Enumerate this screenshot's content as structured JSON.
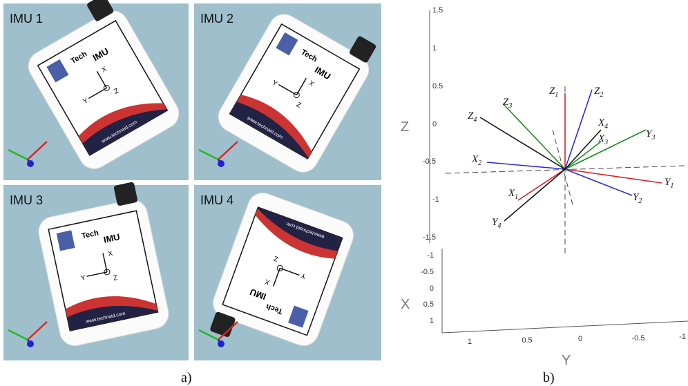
{
  "figure_a": {
    "label": "a)",
    "panels": [
      {
        "title": "IMU 1"
      },
      {
        "title": "IMU 2"
      },
      {
        "title": "IMU 3"
      },
      {
        "title": "IMU 4"
      }
    ],
    "device": {
      "brand": "Tech",
      "model": "IMU",
      "url": "www.technaid.com",
      "axes": [
        "X",
        "Y",
        "Z"
      ]
    }
  },
  "figure_b": {
    "label": "b)",
    "axes": {
      "z": {
        "label": "Z",
        "ticks": [
          "1.5",
          "1",
          "0.5",
          "0",
          "-0.5",
          "-1",
          "-1.5"
        ]
      },
      "x": {
        "label": "X",
        "ticks": [
          "-1",
          "-0.5",
          "0",
          "0.5",
          "1"
        ]
      },
      "y": {
        "label": "Y",
        "ticks": [
          "1",
          "0.5",
          "0",
          "-0.5",
          "-1"
        ]
      }
    },
    "vectors": [
      {
        "letter": "X",
        "index": "1"
      },
      {
        "letter": "Y",
        "index": "1"
      },
      {
        "letter": "Z",
        "index": "1"
      },
      {
        "letter": "X",
        "index": "2"
      },
      {
        "letter": "Y",
        "index": "2"
      },
      {
        "letter": "Z",
        "index": "2"
      },
      {
        "letter": "X",
        "index": "3"
      },
      {
        "letter": "Y",
        "index": "3"
      },
      {
        "letter": "Z",
        "index": "3"
      },
      {
        "letter": "X",
        "index": "4"
      },
      {
        "letter": "Y",
        "index": "4"
      },
      {
        "letter": "Z",
        "index": "4"
      }
    ]
  }
}
